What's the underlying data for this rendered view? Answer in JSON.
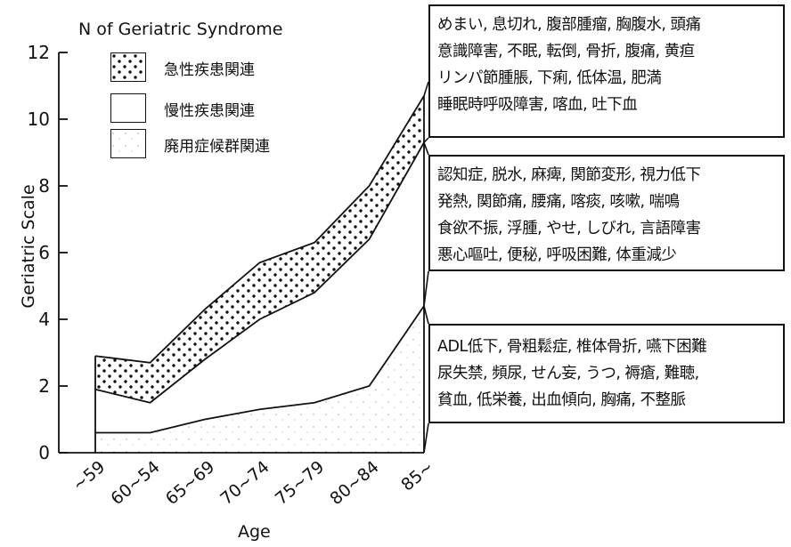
{
  "chart_data": {
    "type": "area",
    "title": "N of Geriatric Syndrome",
    "xlabel": "Age",
    "ylabel": "Geriatric Scale",
    "categories": [
      "~59",
      "60~54",
      "65~69",
      "70~74",
      "75~79",
      "80~84",
      "85~"
    ],
    "ylim": [
      0,
      12
    ],
    "yticks": [
      "0",
      "2",
      "4",
      "6",
      "8",
      "10",
      "12"
    ],
    "series": [
      {
        "name": "廃用症候群関連",
        "values": [
          0.6,
          0.6,
          1.0,
          1.3,
          1.5,
          2.0,
          4.4
        ]
      },
      {
        "name": "慢性疾患関連",
        "values": [
          1.9,
          1.5,
          2.8,
          4.0,
          4.8,
          6.4,
          9.3
        ]
      },
      {
        "name": "急性疾患関連",
        "values": [
          2.9,
          2.7,
          4.3,
          5.7,
          6.3,
          8.0,
          10.7
        ]
      }
    ],
    "stacking": "cumulative",
    "legend_position": "top-left",
    "grid": false
  },
  "annotations": {
    "acute": [
      "めまい, 息切れ, 腹部腫瘤, 胸腹水, 頭痛",
      "意識障害, 不眠, 転倒, 骨折, 腹痛, 黄疸",
      "リンパ節腫脹, 下痢, 低体温, 肥満",
      "睡眠時呼吸障害, 喀血, 吐下血"
    ],
    "chronic": [
      "認知症, 脱水, 麻痺, 関節変形, 視力低下",
      "発熱, 関節痛, 腰痛, 喀痰, 咳嗽, 喘鳴",
      "食欲不振, 浮腫, やせ, しびれ, 言語障害",
      "悪心嘔吐, 便秘, 呼吸困難, 体重減少"
    ],
    "disuse": [
      "ADL低下, 骨粗鬆症, 椎体骨折, 嚥下困難",
      "尿失禁, 頻尿, せん妄, うつ, 褥瘡, 難聴,",
      "貧血, 低栄養, 出血傾向, 胸痛, 不整脈"
    ]
  }
}
